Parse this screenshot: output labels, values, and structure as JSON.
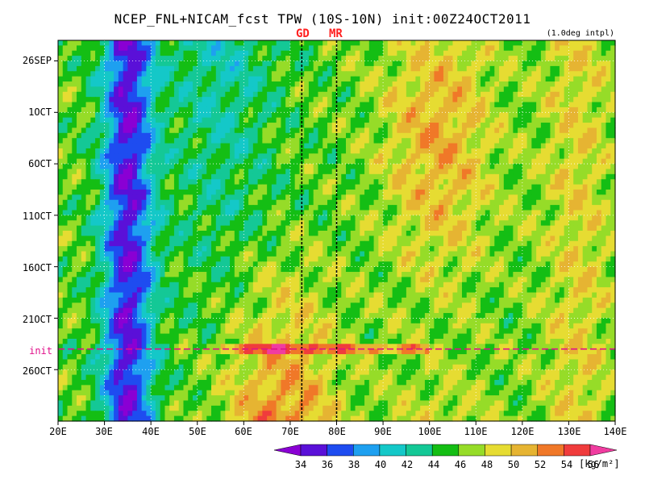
{
  "chart_data": {
    "type": "heatmap",
    "title": "NCEP_FNL+NICAM_fcst TPW (10S-10N) init:00Z24OCT2011",
    "annotation": "(1.0deg intpl)",
    "y_tick_labels": [
      "26SEP",
      "1OCT",
      "6OCT",
      "11OCT",
      "16OCT",
      "21OCT",
      "26OCT"
    ],
    "x_tick_labels": [
      "20E",
      "30E",
      "40E",
      "50E",
      "60E",
      "70E",
      "80E",
      "90E",
      "100E",
      "110E",
      "120E",
      "130E",
      "140E"
    ],
    "x_range": [
      20,
      140
    ],
    "y_range": [
      "24SEP2011",
      "31OCT2011"
    ],
    "colorbar": {
      "levels": [
        34,
        36,
        38,
        40,
        42,
        44,
        46,
        48,
        50,
        52,
        54,
        56
      ],
      "colors": [
        "#8a00d4",
        "#5a10d8",
        "#1e4cf0",
        "#1ea0f0",
        "#14c8c8",
        "#14c896",
        "#14be14",
        "#96dc28",
        "#e6dc32",
        "#e6b432",
        "#f07828",
        "#f03c3c",
        "#f03ca0"
      ],
      "unit": "[kg/m²]"
    },
    "station_markers": [
      {
        "label": "GD",
        "lon": 72.5
      },
      {
        "label": "MR",
        "lon": 80
      }
    ],
    "init_line": {
      "label": "init",
      "date": "24OCT2011"
    }
  }
}
